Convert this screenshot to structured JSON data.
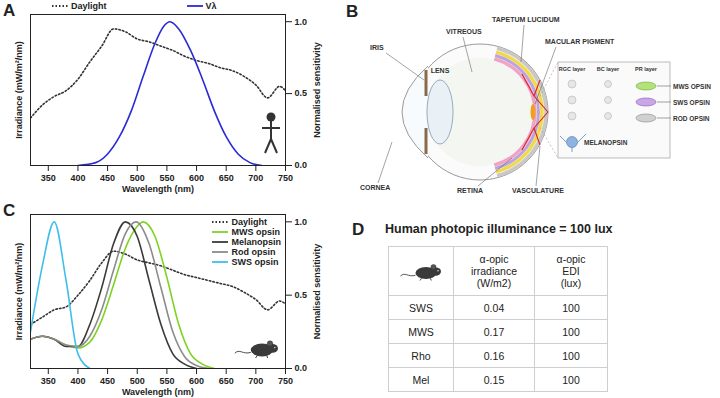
{
  "chart_data": [
    {
      "panel": "A",
      "type": "line",
      "x_label": "Wavelength (nm)",
      "y_label": "Irradiance (mW/m²/nm)",
      "y2_label": "Normalised sensitivity",
      "xlim": [
        320,
        750
      ],
      "xticks": [
        350,
        400,
        450,
        500,
        550,
        600,
        650,
        700,
        750
      ],
      "ylim": [
        0,
        1.05
      ],
      "yticks": [
        {
          "value": 0,
          "label": "0.0"
        },
        {
          "value": 0.5,
          "label": "0.5"
        },
        {
          "value": 1,
          "label": "1.0"
        }
      ],
      "grid": false,
      "legend": "top",
      "series": [
        {
          "name": "Daylight",
          "color": "#333333",
          "line_style": "dotted",
          "x": [
            320,
            340,
            360,
            380,
            400,
            420,
            440,
            460,
            480,
            500,
            520,
            540,
            560,
            580,
            600,
            620,
            640,
            660,
            680,
            700,
            720,
            740,
            750
          ],
          "values": [
            0.33,
            0.42,
            0.48,
            0.52,
            0.6,
            0.72,
            0.83,
            0.95,
            0.93,
            0.88,
            0.86,
            0.83,
            0.8,
            0.76,
            0.73,
            0.71,
            0.68,
            0.66,
            0.62,
            0.56,
            0.47,
            0.55,
            0.52
          ]
        },
        {
          "name": "Vλ",
          "color": "#2a2ad6",
          "line_style": "solid",
          "x": [
            400,
            430,
            450,
            470,
            490,
            510,
            530,
            545,
            555,
            570,
            590,
            610,
            630,
            650,
            670,
            690,
            710
          ],
          "values": [
            0,
            0.02,
            0.08,
            0.2,
            0.38,
            0.62,
            0.85,
            0.97,
            1.0,
            0.95,
            0.8,
            0.6,
            0.38,
            0.2,
            0.08,
            0.02,
            0
          ]
        }
      ]
    },
    {
      "panel": "C",
      "type": "line",
      "x_label": "Wavelength (nm)",
      "y_label": "Irradiance (mW/m²/nm)",
      "y2_label": "Normalised sensitivity",
      "xlim": [
        320,
        750
      ],
      "xticks": [
        350,
        400,
        450,
        500,
        550,
        600,
        650,
        700,
        750
      ],
      "ylim": [
        0,
        1.05
      ],
      "yticks": [
        {
          "value": 0,
          "label": "0.0"
        },
        {
          "value": 0.5,
          "label": "0.5"
        },
        {
          "value": 1,
          "label": "1.0"
        }
      ],
      "grid": false,
      "legend": "top-right",
      "series": [
        {
          "name": "Daylight",
          "color": "#333333",
          "line_style": "dotted",
          "x": [
            320,
            340,
            360,
            380,
            400,
            420,
            440,
            460,
            480,
            500,
            520,
            540,
            560,
            580,
            600,
            620,
            640,
            660,
            680,
            700,
            720,
            740,
            750
          ],
          "values": [
            0.3,
            0.35,
            0.4,
            0.42,
            0.5,
            0.6,
            0.72,
            0.8,
            0.78,
            0.74,
            0.72,
            0.7,
            0.67,
            0.64,
            0.62,
            0.6,
            0.58,
            0.56,
            0.52,
            0.47,
            0.4,
            0.46,
            0.44
          ]
        },
        {
          "name": "MWS opsin",
          "color": "#7ed321",
          "line_style": "solid",
          "x": [
            320,
            340,
            360,
            380,
            400,
            420,
            440,
            460,
            480,
            500,
            510,
            530,
            550,
            570,
            590,
            610,
            630
          ],
          "values": [
            0.2,
            0.22,
            0.2,
            0.16,
            0.14,
            0.18,
            0.33,
            0.57,
            0.82,
            0.97,
            1.0,
            0.9,
            0.62,
            0.3,
            0.1,
            0.03,
            0
          ]
        },
        {
          "name": "Melanopsin",
          "color": "#3a3a3a",
          "line_style": "solid",
          "x": [
            320,
            340,
            360,
            380,
            400,
            420,
            440,
            460,
            480,
            500,
            520,
            540,
            560,
            580,
            600
          ],
          "values": [
            0.2,
            0.22,
            0.2,
            0.15,
            0.15,
            0.3,
            0.55,
            0.85,
            1.0,
            0.9,
            0.6,
            0.3,
            0.1,
            0.03,
            0
          ]
        },
        {
          "name": "Rod opsin",
          "color": "#8c8c8c",
          "line_style": "solid",
          "x": [
            320,
            340,
            360,
            380,
            400,
            420,
            440,
            460,
            480,
            498,
            520,
            540,
            560,
            580,
            600,
            620
          ],
          "values": [
            0.2,
            0.22,
            0.2,
            0.16,
            0.15,
            0.22,
            0.4,
            0.67,
            0.92,
            1.0,
            0.85,
            0.55,
            0.25,
            0.08,
            0.02,
            0
          ]
        },
        {
          "name": "SWS opsin",
          "color": "#3fbfe8",
          "line_style": "solid",
          "x": [
            320,
            340,
            360,
            380,
            400,
            420
          ],
          "values": [
            0.25,
            0.7,
            1.0,
            0.6,
            0.1,
            0
          ]
        }
      ]
    }
  ],
  "diagram": {
    "panel": "B",
    "labels": {
      "iris": "IRIS",
      "lens": "LENS",
      "cornea": "CORNEA",
      "vitreous": "VITREOUS",
      "tapetum": "TAPETUM LUCIDUM",
      "macular": "MACULAR PIGMENT",
      "retina": "RETINA",
      "vasculature": "VASCULATURE"
    },
    "inset": {
      "layers": [
        "RGC layer",
        "BC layer",
        "PR layer"
      ],
      "photoreceptors": [
        "MWS OPSIN",
        "SWS OPSIN",
        "ROD OPSIN"
      ],
      "ganglion": "MELANOPSIN"
    }
  },
  "table": {
    "panel": "D",
    "title": "Human photopic illuminance = 100 lux",
    "header": [
      [
        "α-opic",
        "irradiance",
        "(W/m2)"
      ],
      [
        "α-opic",
        "EDI",
        "(lux)"
      ]
    ],
    "rows": [
      [
        "SWS",
        "0.04",
        "100"
      ],
      [
        "MWS",
        "0.17",
        "100"
      ],
      [
        "Rho",
        "0.16",
        "100"
      ],
      [
        "Mel",
        "0.15",
        "100"
      ]
    ]
  }
}
